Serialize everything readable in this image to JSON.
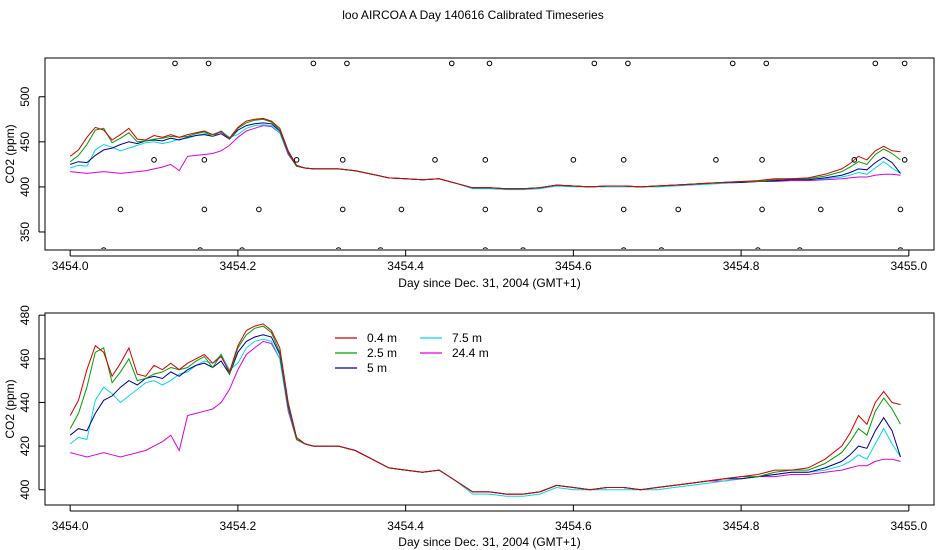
{
  "title": "loo AIRCOA A  Day 140616  Calibrated Timeseries",
  "colors": {
    "0.4 m": "#d40000",
    "2.5 m": "#00a000",
    "5 m": "#000099",
    "7.5 m": "#00d8f0",
    "24.4 m": "#dd00dd",
    "axis": "#000000"
  },
  "chart_data": [
    {
      "type": "line",
      "xlabel": "Day since Dec. 31, 2004 (GMT+1)",
      "ylabel": "CO2 (ppm)",
      "xlim": [
        3453.97,
        3455.03
      ],
      "ylim": [
        330,
        543
      ],
      "x_ticks": [
        "3454.0",
        "3454.2",
        "3454.4",
        "3454.6",
        "3454.8",
        "3455.0"
      ],
      "y_ticks": [
        "350",
        "400",
        "450",
        "500"
      ],
      "x": [
        3454.0,
        3454.01,
        3454.02,
        3454.03,
        3454.04,
        3454.05,
        3454.06,
        3454.07,
        3454.08,
        3454.09,
        3454.1,
        3454.11,
        3454.12,
        3454.13,
        3454.14,
        3454.15,
        3454.16,
        3454.17,
        3454.18,
        3454.19,
        3454.2,
        3454.21,
        3454.22,
        3454.23,
        3454.24,
        3454.25,
        3454.26,
        3454.27,
        3454.28,
        3454.29,
        3454.3,
        3454.32,
        3454.34,
        3454.36,
        3454.38,
        3454.4,
        3454.42,
        3454.44,
        3454.46,
        3454.48,
        3454.5,
        3454.52,
        3454.54,
        3454.56,
        3454.58,
        3454.6,
        3454.62,
        3454.64,
        3454.66,
        3454.68,
        3454.7,
        3454.72,
        3454.74,
        3454.76,
        3454.78,
        3454.8,
        3454.82,
        3454.84,
        3454.86,
        3454.88,
        3454.9,
        3454.92,
        3454.93,
        3454.94,
        3454.95,
        3454.96,
        3454.97,
        3454.98,
        3454.99
      ],
      "series": [
        {
          "name": "0.4 m",
          "values": [
            434,
            441,
            455,
            466,
            463,
            452,
            458,
            465,
            453,
            452,
            457,
            455,
            458,
            455,
            458,
            460,
            462,
            458,
            461,
            454,
            466,
            473,
            475,
            476,
            473,
            465,
            440,
            424,
            421,
            420,
            420,
            420,
            418,
            414,
            410,
            409,
            408,
            409,
            404,
            399,
            399,
            398,
            398,
            399,
            402,
            401,
            400,
            401,
            401,
            400,
            401,
            402,
            403,
            404,
            405,
            406,
            407,
            409,
            409,
            410,
            414,
            420,
            426,
            434,
            430,
            440,
            445,
            440,
            439
          ]
        },
        {
          "name": "2.5 m",
          "values": [
            428,
            435,
            447,
            463,
            465,
            449,
            454,
            460,
            450,
            451,
            453,
            454,
            456,
            455,
            456,
            459,
            461,
            456,
            462,
            453,
            465,
            471,
            474,
            475,
            472,
            463,
            439,
            423,
            421,
            420,
            420,
            420,
            418,
            414,
            410,
            409,
            408,
            409,
            404,
            399,
            399,
            398,
            398,
            399,
            402,
            401,
            400,
            401,
            401,
            400,
            401,
            402,
            403,
            404,
            405,
            406,
            406,
            408,
            409,
            409,
            412,
            417,
            422,
            428,
            425,
            436,
            442,
            437,
            430
          ]
        },
        {
          "name": "5 m",
          "values": [
            425,
            428,
            427,
            435,
            441,
            443,
            447,
            450,
            448,
            451,
            452,
            451,
            454,
            452,
            455,
            457,
            458,
            456,
            459,
            453,
            463,
            468,
            470,
            471,
            470,
            462,
            438,
            423,
            421,
            420,
            420,
            420,
            418,
            414,
            410,
            409,
            408,
            409,
            404,
            399,
            399,
            398,
            398,
            399,
            402,
            401,
            400,
            401,
            401,
            400,
            401,
            402,
            403,
            404,
            405,
            405,
            406,
            407,
            408,
            408,
            410,
            413,
            416,
            420,
            419,
            427,
            433,
            427,
            415
          ]
        },
        {
          "name": "7.5 m",
          "values": [
            421,
            424,
            423,
            441,
            447,
            444,
            440,
            443,
            446,
            449,
            450,
            448,
            450,
            453,
            454,
            457,
            459,
            458,
            462,
            455,
            458,
            465,
            468,
            469,
            468,
            460,
            437,
            423,
            421,
            420,
            420,
            420,
            418,
            414,
            410,
            409,
            408,
            409,
            404,
            398,
            398,
            397,
            397,
            398,
            401,
            400,
            400,
            400,
            400,
            400,
            400,
            401,
            402,
            403,
            404,
            405,
            406,
            407,
            408,
            408,
            409,
            411,
            413,
            416,
            414,
            421,
            428,
            421,
            415
          ]
        },
        {
          "name": "24.4 m",
          "values": [
            417,
            416,
            415,
            416,
            417,
            416,
            415,
            416,
            417,
            418,
            420,
            422,
            425,
            418,
            434,
            435,
            436,
            437,
            440,
            446,
            455,
            462,
            465,
            468,
            467,
            460,
            436,
            423,
            421,
            420,
            420,
            420,
            418,
            414,
            410,
            409,
            408,
            409,
            404,
            399,
            399,
            398,
            398,
            399,
            402,
            401,
            400,
            401,
            401,
            400,
            401,
            402,
            403,
            404,
            404,
            405,
            406,
            406,
            407,
            407,
            408,
            409,
            410,
            411,
            411,
            413,
            414,
            414,
            413
          ]
        }
      ],
      "markers": {
        "x": [
          3454.04,
          3454.06,
          3454.1,
          3454.125,
          3454.155,
          3454.16,
          3454.16,
          3454.165,
          3454.205,
          3454.225,
          3454.27,
          3454.29,
          3454.32,
          3454.325,
          3454.325,
          3454.33,
          3454.37,
          3454.395,
          3454.435,
          3454.455,
          3454.495,
          3454.495,
          3454.495,
          3454.5,
          3454.54,
          3454.56,
          3454.6,
          3454.625,
          3454.66,
          3454.66,
          3454.66,
          3454.665,
          3454.705,
          3454.725,
          3454.77,
          3454.79,
          3454.82,
          3454.825,
          3454.825,
          3454.83,
          3454.87,
          3454.895,
          3454.935,
          3454.96,
          3454.99,
          3454.99,
          3454.995,
          3454.995
        ],
        "y": [
          330,
          375,
          430,
          537,
          330,
          375,
          430,
          537,
          330,
          375,
          430,
          537,
          330,
          375,
          430,
          537,
          330,
          375,
          430,
          537,
          330,
          375,
          430,
          537,
          330,
          375,
          430,
          537,
          330,
          375,
          430,
          537,
          330,
          375,
          430,
          537,
          330,
          375,
          430,
          537,
          330,
          375,
          430,
          537,
          330,
          375,
          430,
          537
        ]
      }
    },
    {
      "type": "line",
      "xlabel": "Day since Dec. 31, 2004 (GMT+1)",
      "ylabel": "CO2 (ppm)",
      "xlim": [
        3453.97,
        3455.03
      ],
      "ylim": [
        393,
        481
      ],
      "x_ticks": [
        "3454.0",
        "3454.2",
        "3454.4",
        "3454.6",
        "3454.8",
        "3455.0"
      ],
      "y_ticks": [
        "400",
        "420",
        "440",
        "460",
        "480"
      ],
      "legend_placement": "top-center",
      "x": [
        3454.0,
        3454.01,
        3454.02,
        3454.03,
        3454.04,
        3454.05,
        3454.06,
        3454.07,
        3454.08,
        3454.09,
        3454.1,
        3454.11,
        3454.12,
        3454.13,
        3454.14,
        3454.15,
        3454.16,
        3454.17,
        3454.18,
        3454.19,
        3454.2,
        3454.21,
        3454.22,
        3454.23,
        3454.24,
        3454.25,
        3454.26,
        3454.27,
        3454.28,
        3454.29,
        3454.3,
        3454.32,
        3454.34,
        3454.36,
        3454.38,
        3454.4,
        3454.42,
        3454.44,
        3454.46,
        3454.48,
        3454.5,
        3454.52,
        3454.54,
        3454.56,
        3454.58,
        3454.6,
        3454.62,
        3454.64,
        3454.66,
        3454.68,
        3454.7,
        3454.72,
        3454.74,
        3454.76,
        3454.78,
        3454.8,
        3454.82,
        3454.84,
        3454.86,
        3454.88,
        3454.9,
        3454.92,
        3454.93,
        3454.94,
        3454.95,
        3454.96,
        3454.97,
        3454.98,
        3454.99
      ],
      "series": [
        {
          "name": "0.4 m",
          "values": [
            434,
            441,
            455,
            466,
            463,
            452,
            458,
            465,
            453,
            452,
            457,
            455,
            458,
            455,
            458,
            460,
            462,
            458,
            461,
            454,
            466,
            473,
            475,
            476,
            473,
            465,
            440,
            424,
            421,
            420,
            420,
            420,
            418,
            414,
            410,
            409,
            408,
            409,
            404,
            399,
            399,
            398,
            398,
            399,
            402,
            401,
            400,
            401,
            401,
            400,
            401,
            402,
            403,
            404,
            405,
            406,
            407,
            409,
            409,
            410,
            414,
            420,
            426,
            434,
            430,
            440,
            445,
            440,
            439
          ]
        },
        {
          "name": "2.5 m",
          "values": [
            428,
            435,
            447,
            463,
            465,
            449,
            454,
            460,
            450,
            451,
            453,
            454,
            456,
            455,
            456,
            459,
            461,
            456,
            462,
            453,
            465,
            471,
            474,
            475,
            472,
            463,
            439,
            423,
            421,
            420,
            420,
            420,
            418,
            414,
            410,
            409,
            408,
            409,
            404,
            399,
            399,
            398,
            398,
            399,
            402,
            401,
            400,
            401,
            401,
            400,
            401,
            402,
            403,
            404,
            405,
            406,
            406,
            408,
            409,
            409,
            412,
            417,
            422,
            428,
            425,
            436,
            442,
            437,
            430
          ]
        },
        {
          "name": "5 m",
          "values": [
            425,
            428,
            427,
            435,
            441,
            443,
            447,
            450,
            448,
            451,
            452,
            451,
            454,
            452,
            455,
            457,
            458,
            456,
            459,
            453,
            463,
            468,
            470,
            471,
            470,
            462,
            438,
            423,
            421,
            420,
            420,
            420,
            418,
            414,
            410,
            409,
            408,
            409,
            404,
            399,
            399,
            398,
            398,
            399,
            402,
            401,
            400,
            401,
            401,
            400,
            401,
            402,
            403,
            404,
            405,
            405,
            406,
            407,
            408,
            408,
            410,
            413,
            416,
            420,
            419,
            427,
            433,
            427,
            415
          ]
        },
        {
          "name": "7.5 m",
          "values": [
            421,
            424,
            423,
            441,
            447,
            444,
            440,
            443,
            446,
            449,
            450,
            448,
            450,
            453,
            454,
            457,
            459,
            458,
            462,
            455,
            458,
            465,
            468,
            469,
            468,
            460,
            437,
            423,
            421,
            420,
            420,
            420,
            418,
            414,
            410,
            409,
            408,
            409,
            404,
            398,
            398,
            397,
            397,
            398,
            401,
            400,
            400,
            400,
            400,
            400,
            400,
            401,
            402,
            403,
            404,
            405,
            406,
            407,
            408,
            408,
            409,
            411,
            413,
            416,
            414,
            421,
            428,
            421,
            415
          ]
        },
        {
          "name": "24.4 m",
          "values": [
            417,
            416,
            415,
            416,
            417,
            416,
            415,
            416,
            417,
            418,
            420,
            422,
            425,
            418,
            434,
            435,
            436,
            437,
            440,
            446,
            455,
            462,
            465,
            468,
            467,
            460,
            436,
            423,
            421,
            420,
            420,
            420,
            418,
            414,
            410,
            409,
            408,
            409,
            404,
            399,
            399,
            398,
            398,
            399,
            402,
            401,
            400,
            401,
            401,
            400,
            401,
            402,
            403,
            404,
            404,
            405,
            406,
            406,
            407,
            407,
            408,
            409,
            410,
            411,
            411,
            413,
            414,
            414,
            413
          ]
        }
      ]
    }
  ]
}
